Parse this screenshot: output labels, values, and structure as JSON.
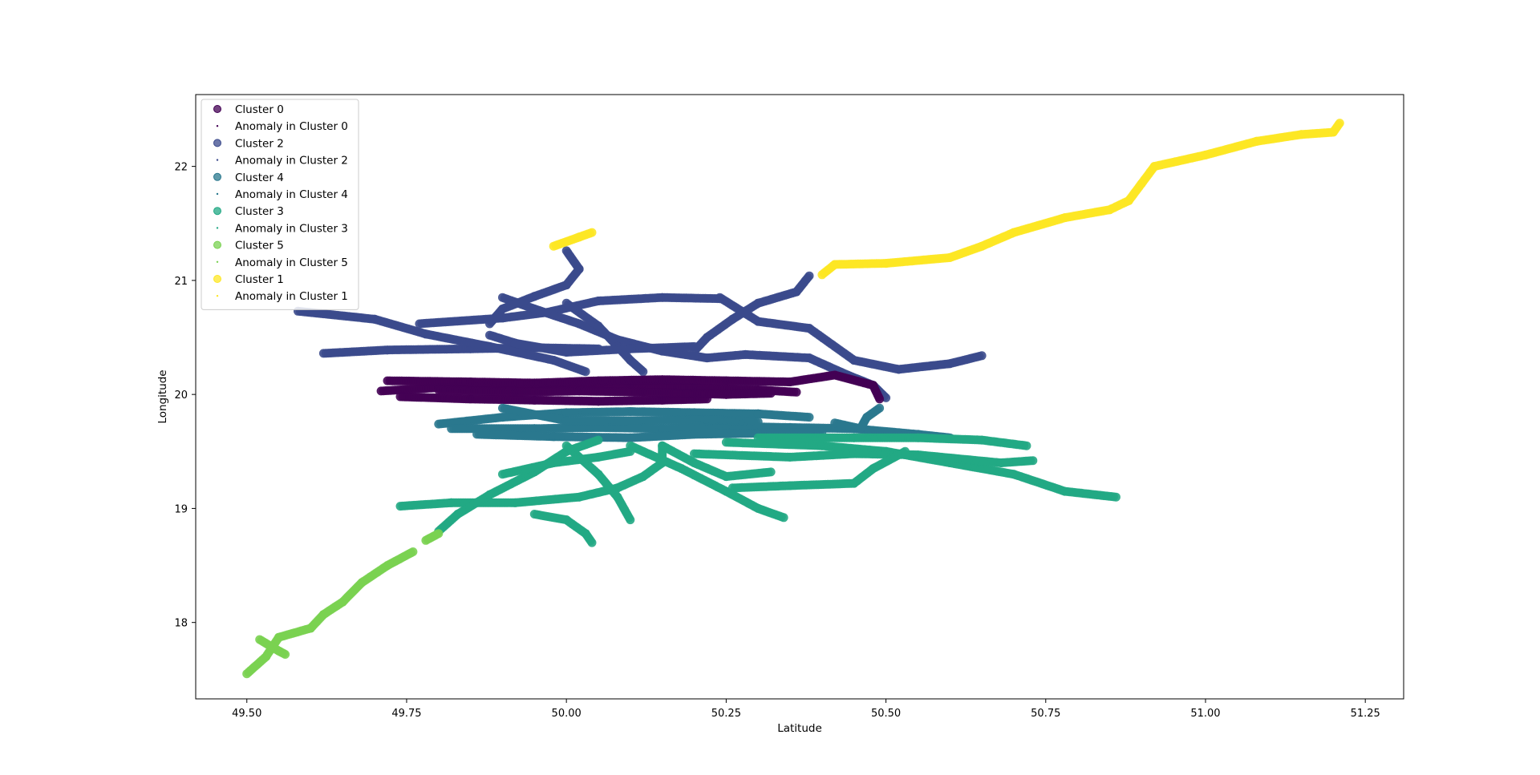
{
  "chart_data": {
    "type": "scatter",
    "title": "",
    "xlabel": "Latitude",
    "ylabel": "Longitude",
    "xlim": [
      49.42,
      51.31
    ],
    "ylim": [
      17.33,
      22.63
    ],
    "grid": false,
    "legend_position": "upper-left",
    "xticks": [
      "49.50",
      "49.75",
      "50.00",
      "50.25",
      "50.50",
      "50.75",
      "51.00",
      "51.25"
    ],
    "yticks": [
      "18",
      "19",
      "20",
      "21",
      "22"
    ],
    "legend": [
      {
        "label": "Cluster 0",
        "kind": "cluster",
        "color": "#440154"
      },
      {
        "label": "Anomaly in Cluster 0",
        "kind": "anomaly",
        "color": "#440154"
      },
      {
        "label": "Cluster 2",
        "kind": "cluster",
        "color": "#3b4a8c"
      },
      {
        "label": "Anomaly in Cluster 2",
        "kind": "anomaly",
        "color": "#3b4a8c"
      },
      {
        "label": "Cluster 4",
        "kind": "cluster",
        "color": "#2a788e"
      },
      {
        "label": "Anomaly in Cluster 4",
        "kind": "anomaly",
        "color": "#2a788e"
      },
      {
        "label": "Cluster 3",
        "kind": "cluster",
        "color": "#22a884"
      },
      {
        "label": "Anomaly in Cluster 3",
        "kind": "anomaly",
        "color": "#22a884"
      },
      {
        "label": "Cluster 5",
        "kind": "cluster",
        "color": "#7ad151"
      },
      {
        "label": "Anomaly in Cluster 5",
        "kind": "anomaly",
        "color": "#7ad151"
      },
      {
        "label": "Cluster 1",
        "kind": "cluster",
        "color": "#fde725"
      },
      {
        "label": "Anomaly in Cluster 1",
        "kind": "anomaly",
        "color": "#fde725"
      }
    ],
    "series": [
      {
        "name": "Cluster 2",
        "color": "#3b4a8c",
        "paths": [
          [
            [
              49.62,
              20.36
            ],
            [
              49.72,
              20.39
            ],
            [
              49.85,
              20.4
            ],
            [
              49.95,
              20.41
            ],
            [
              50.05,
              20.4
            ]
          ],
          [
            [
              49.58,
              20.73
            ],
            [
              49.7,
              20.66
            ],
            [
              49.78,
              20.53
            ],
            [
              49.88,
              20.42
            ],
            [
              49.98,
              20.3
            ],
            [
              50.03,
              20.2
            ]
          ],
          [
            [
              49.77,
              20.62
            ],
            [
              49.9,
              20.67
            ],
            [
              49.97,
              20.72
            ],
            [
              50.05,
              20.82
            ],
            [
              50.15,
              20.85
            ],
            [
              50.24,
              20.84
            ]
          ],
          [
            [
              49.9,
              20.85
            ],
            [
              49.95,
              20.75
            ],
            [
              50.02,
              20.62
            ],
            [
              50.08,
              20.48
            ],
            [
              50.15,
              20.38
            ],
            [
              50.22,
              20.32
            ]
          ],
          [
            [
              50.0,
              21.26
            ],
            [
              50.02,
              21.1
            ],
            [
              50.0,
              20.96
            ],
            [
              49.95,
              20.86
            ],
            [
              49.9,
              20.75
            ],
            [
              49.88,
              20.62
            ]
          ],
          [
            [
              50.0,
              20.8
            ],
            [
              50.05,
              20.6
            ],
            [
              50.08,
              20.42
            ],
            [
              50.1,
              20.3
            ],
            [
              50.12,
              20.2
            ]
          ],
          [
            [
              50.24,
              20.85
            ],
            [
              50.3,
              20.64
            ],
            [
              50.38,
              20.58
            ],
            [
              50.45,
              20.3
            ],
            [
              50.52,
              20.22
            ],
            [
              50.6,
              20.27
            ],
            [
              50.65,
              20.34
            ]
          ],
          [
            [
              50.38,
              21.04
            ],
            [
              50.36,
              20.9
            ],
            [
              50.3,
              20.8
            ],
            [
              50.26,
              20.66
            ],
            [
              50.22,
              20.5
            ],
            [
              50.2,
              20.38
            ]
          ],
          [
            [
              50.22,
              20.32
            ],
            [
              50.28,
              20.35
            ],
            [
              50.38,
              20.32
            ],
            [
              50.44,
              20.17
            ],
            [
              50.48,
              20.08
            ],
            [
              50.5,
              19.97
            ]
          ],
          [
            [
              49.88,
              20.52
            ],
            [
              49.92,
              20.45
            ],
            [
              50.0,
              20.37
            ],
            [
              50.1,
              20.4
            ],
            [
              50.2,
              20.42
            ]
          ]
        ]
      },
      {
        "name": "Cluster 0",
        "color": "#440154",
        "paths": [
          [
            [
              49.71,
              20.03
            ],
            [
              49.8,
              20.06
            ],
            [
              49.9,
              20.08
            ],
            [
              50.0,
              20.09
            ],
            [
              50.1,
              20.09
            ],
            [
              50.2,
              20.06
            ],
            [
              50.3,
              20.04
            ],
            [
              50.36,
              20.02
            ]
          ],
          [
            [
              49.72,
              20.12
            ],
            [
              49.85,
              20.11
            ],
            [
              49.95,
              20.1
            ],
            [
              50.05,
              20.12
            ],
            [
              50.15,
              20.13
            ],
            [
              50.25,
              20.12
            ],
            [
              50.35,
              20.11
            ],
            [
              50.42,
              20.17
            ],
            [
              50.48,
              20.08
            ],
            [
              50.49,
              19.96
            ]
          ],
          [
            [
              49.74,
              19.98
            ],
            [
              49.85,
              19.96
            ],
            [
              49.95,
              19.95
            ],
            [
              50.05,
              19.94
            ],
            [
              50.15,
              19.95
            ],
            [
              50.22,
              19.96
            ]
          ],
          [
            [
              49.8,
              20.04
            ],
            [
              49.92,
              20.02
            ],
            [
              50.02,
              20.03
            ],
            [
              50.12,
              20.02
            ],
            [
              50.25,
              20.0
            ],
            [
              50.32,
              20.01
            ]
          ]
        ]
      },
      {
        "name": "Cluster 4",
        "color": "#2a788e",
        "paths": [
          [
            [
              49.8,
              19.74
            ],
            [
              49.9,
              19.8
            ],
            [
              50.0,
              19.84
            ],
            [
              50.1,
              19.85
            ],
            [
              50.2,
              19.84
            ],
            [
              50.3,
              19.83
            ],
            [
              50.38,
              19.8
            ]
          ],
          [
            [
              49.82,
              19.7
            ],
            [
              49.95,
              19.7
            ],
            [
              50.05,
              19.71
            ],
            [
              50.15,
              19.7
            ],
            [
              50.25,
              19.72
            ],
            [
              50.35,
              19.71
            ],
            [
              50.45,
              19.7
            ],
            [
              50.55,
              19.65
            ],
            [
              50.6,
              19.62
            ]
          ],
          [
            [
              49.86,
              19.65
            ],
            [
              49.98,
              19.63
            ],
            [
              50.1,
              19.62
            ],
            [
              50.2,
              19.65
            ],
            [
              50.3,
              19.66
            ],
            [
              50.4,
              19.67
            ]
          ],
          [
            [
              49.9,
              19.88
            ],
            [
              50.0,
              19.77
            ],
            [
              50.12,
              19.77
            ],
            [
              50.22,
              19.78
            ],
            [
              50.3,
              19.76
            ]
          ],
          [
            [
              50.42,
              19.75
            ],
            [
              50.46,
              19.7
            ],
            [
              50.47,
              19.8
            ],
            [
              50.49,
              19.88
            ]
          ]
        ]
      },
      {
        "name": "Cluster 3",
        "color": "#22a884",
        "paths": [
          [
            [
              49.74,
              19.02
            ],
            [
              49.82,
              19.05
            ],
            [
              49.92,
              19.05
            ],
            [
              50.02,
              19.1
            ],
            [
              50.08,
              19.18
            ],
            [
              50.12,
              19.28
            ],
            [
              50.15,
              19.4
            ],
            [
              50.15,
              19.55
            ]
          ],
          [
            [
              49.8,
              18.8
            ],
            [
              49.83,
              18.95
            ],
            [
              49.88,
              19.12
            ],
            [
              49.95,
              19.32
            ],
            [
              50.0,
              19.5
            ],
            [
              50.05,
              19.6
            ]
          ],
          [
            [
              49.95,
              18.95
            ],
            [
              50.0,
              18.9
            ],
            [
              50.03,
              18.78
            ],
            [
              50.04,
              18.7
            ]
          ],
          [
            [
              50.1,
              19.55
            ],
            [
              50.18,
              19.35
            ],
            [
              50.25,
              19.15
            ],
            [
              50.3,
              19.0
            ],
            [
              50.34,
              18.92
            ]
          ],
          [
            [
              50.0,
              19.55
            ],
            [
              50.05,
              19.3
            ],
            [
              50.08,
              19.1
            ],
            [
              50.1,
              18.9
            ]
          ],
          [
            [
              50.25,
              19.58
            ],
            [
              50.4,
              19.55
            ],
            [
              50.5,
              19.5
            ],
            [
              50.6,
              19.4
            ],
            [
              50.7,
              19.3
            ],
            [
              50.78,
              19.15
            ],
            [
              50.86,
              19.1
            ]
          ],
          [
            [
              50.3,
              19.62
            ],
            [
              50.45,
              19.62
            ],
            [
              50.55,
              19.62
            ],
            [
              50.65,
              19.6
            ],
            [
              50.72,
              19.55
            ]
          ],
          [
            [
              50.2,
              19.48
            ],
            [
              50.35,
              19.45
            ],
            [
              50.45,
              19.48
            ],
            [
              50.55,
              19.47
            ],
            [
              50.68,
              19.4
            ],
            [
              50.73,
              19.42
            ]
          ],
          [
            [
              50.26,
              19.18
            ],
            [
              50.35,
              19.2
            ],
            [
              50.45,
              19.22
            ],
            [
              50.48,
              19.35
            ],
            [
              50.53,
              19.5
            ]
          ],
          [
            [
              50.15,
              19.55
            ],
            [
              50.2,
              19.4
            ],
            [
              50.25,
              19.28
            ],
            [
              50.32,
              19.32
            ]
          ],
          [
            [
              49.9,
              19.3
            ],
            [
              49.98,
              19.4
            ],
            [
              50.05,
              19.45
            ],
            [
              50.1,
              19.5
            ]
          ]
        ]
      },
      {
        "name": "Cluster 5",
        "color": "#7ad151",
        "paths": [
          [
            [
              49.5,
              17.55
            ],
            [
              49.53,
              17.7
            ],
            [
              49.55,
              17.87
            ],
            [
              49.6,
              17.95
            ],
            [
              49.62,
              18.07
            ],
            [
              49.65,
              18.18
            ],
            [
              49.68,
              18.35
            ],
            [
              49.72,
              18.5
            ],
            [
              49.76,
              18.62
            ]
          ],
          [
            [
              49.52,
              17.85
            ],
            [
              49.55,
              17.75
            ],
            [
              49.56,
              17.72
            ]
          ],
          [
            [
              49.78,
              18.72
            ],
            [
              49.8,
              18.78
            ]
          ]
        ]
      },
      {
        "name": "Cluster 1",
        "color": "#fde725",
        "paths": [
          [
            [
              49.98,
              21.3
            ],
            [
              50.02,
              21.38
            ],
            [
              50.04,
              21.42
            ]
          ],
          [
            [
              50.4,
              21.05
            ],
            [
              50.42,
              21.14
            ],
            [
              50.5,
              21.15
            ],
            [
              50.6,
              21.2
            ],
            [
              50.65,
              21.3
            ],
            [
              50.7,
              21.42
            ],
            [
              50.78,
              21.55
            ],
            [
              50.85,
              21.62
            ],
            [
              50.88,
              21.7
            ],
            [
              50.9,
              21.85
            ],
            [
              50.92,
              22.0
            ],
            [
              51.0,
              22.1
            ],
            [
              51.08,
              22.22
            ],
            [
              51.15,
              22.28
            ],
            [
              51.2,
              22.3
            ],
            [
              51.21,
              22.38
            ]
          ]
        ]
      }
    ]
  }
}
